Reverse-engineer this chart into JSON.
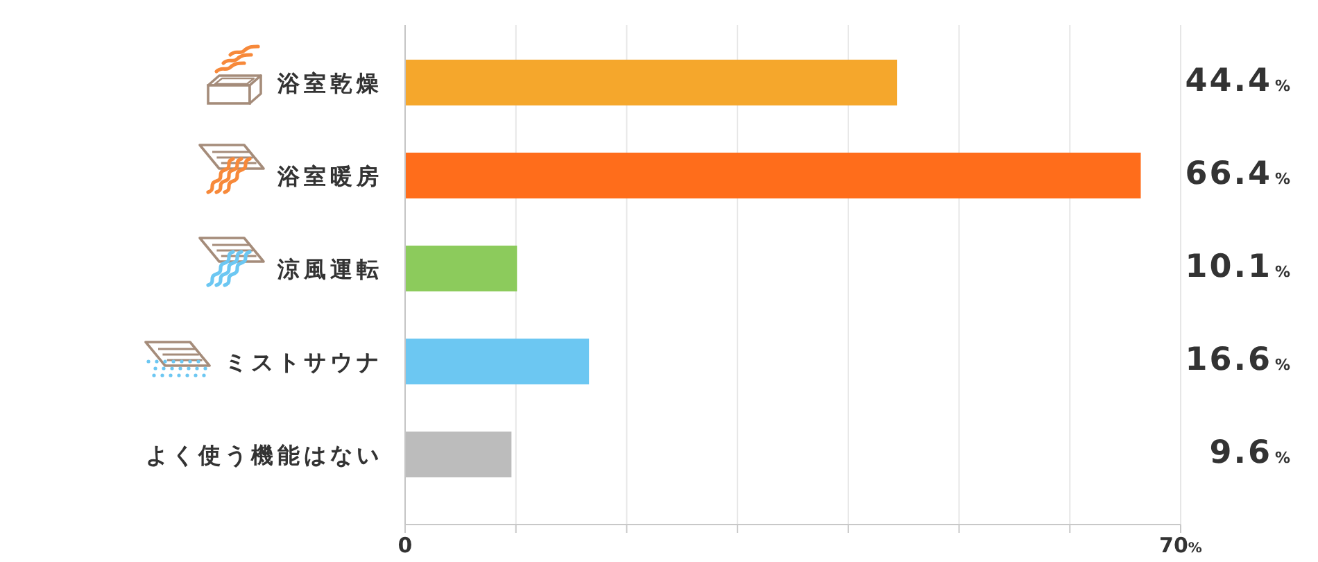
{
  "chart_data": {
    "type": "bar",
    "orientation": "horizontal",
    "categories": [
      "浴室乾燥",
      "浴室暖房",
      "涼風運転",
      "ミストサウナ",
      "よく使う機能はない"
    ],
    "values": [
      44.4,
      66.4,
      10.1,
      16.6,
      9.6
    ],
    "colors": [
      "#f5a72c",
      "#ff6d1b",
      "#8ccb5c",
      "#6cc7f2",
      "#bcbcbc"
    ],
    "value_labels": [
      "44.4%",
      "66.4%",
      "10.1%",
      "16.6%",
      "9.6%"
    ],
    "xlim": [
      0,
      70
    ],
    "xticks": [
      0,
      {
        "value": 10,
        "label": null
      },
      {
        "value": 20,
        "label": null
      },
      {
        "value": 30,
        "label": null
      },
      {
        "value": 40,
        "label": null
      },
      {
        "value": 50,
        "label": null
      },
      {
        "value": 60,
        "label": null
      },
      {
        "value": 70,
        "label": "70%"
      }
    ],
    "grid": "x"
  }
}
